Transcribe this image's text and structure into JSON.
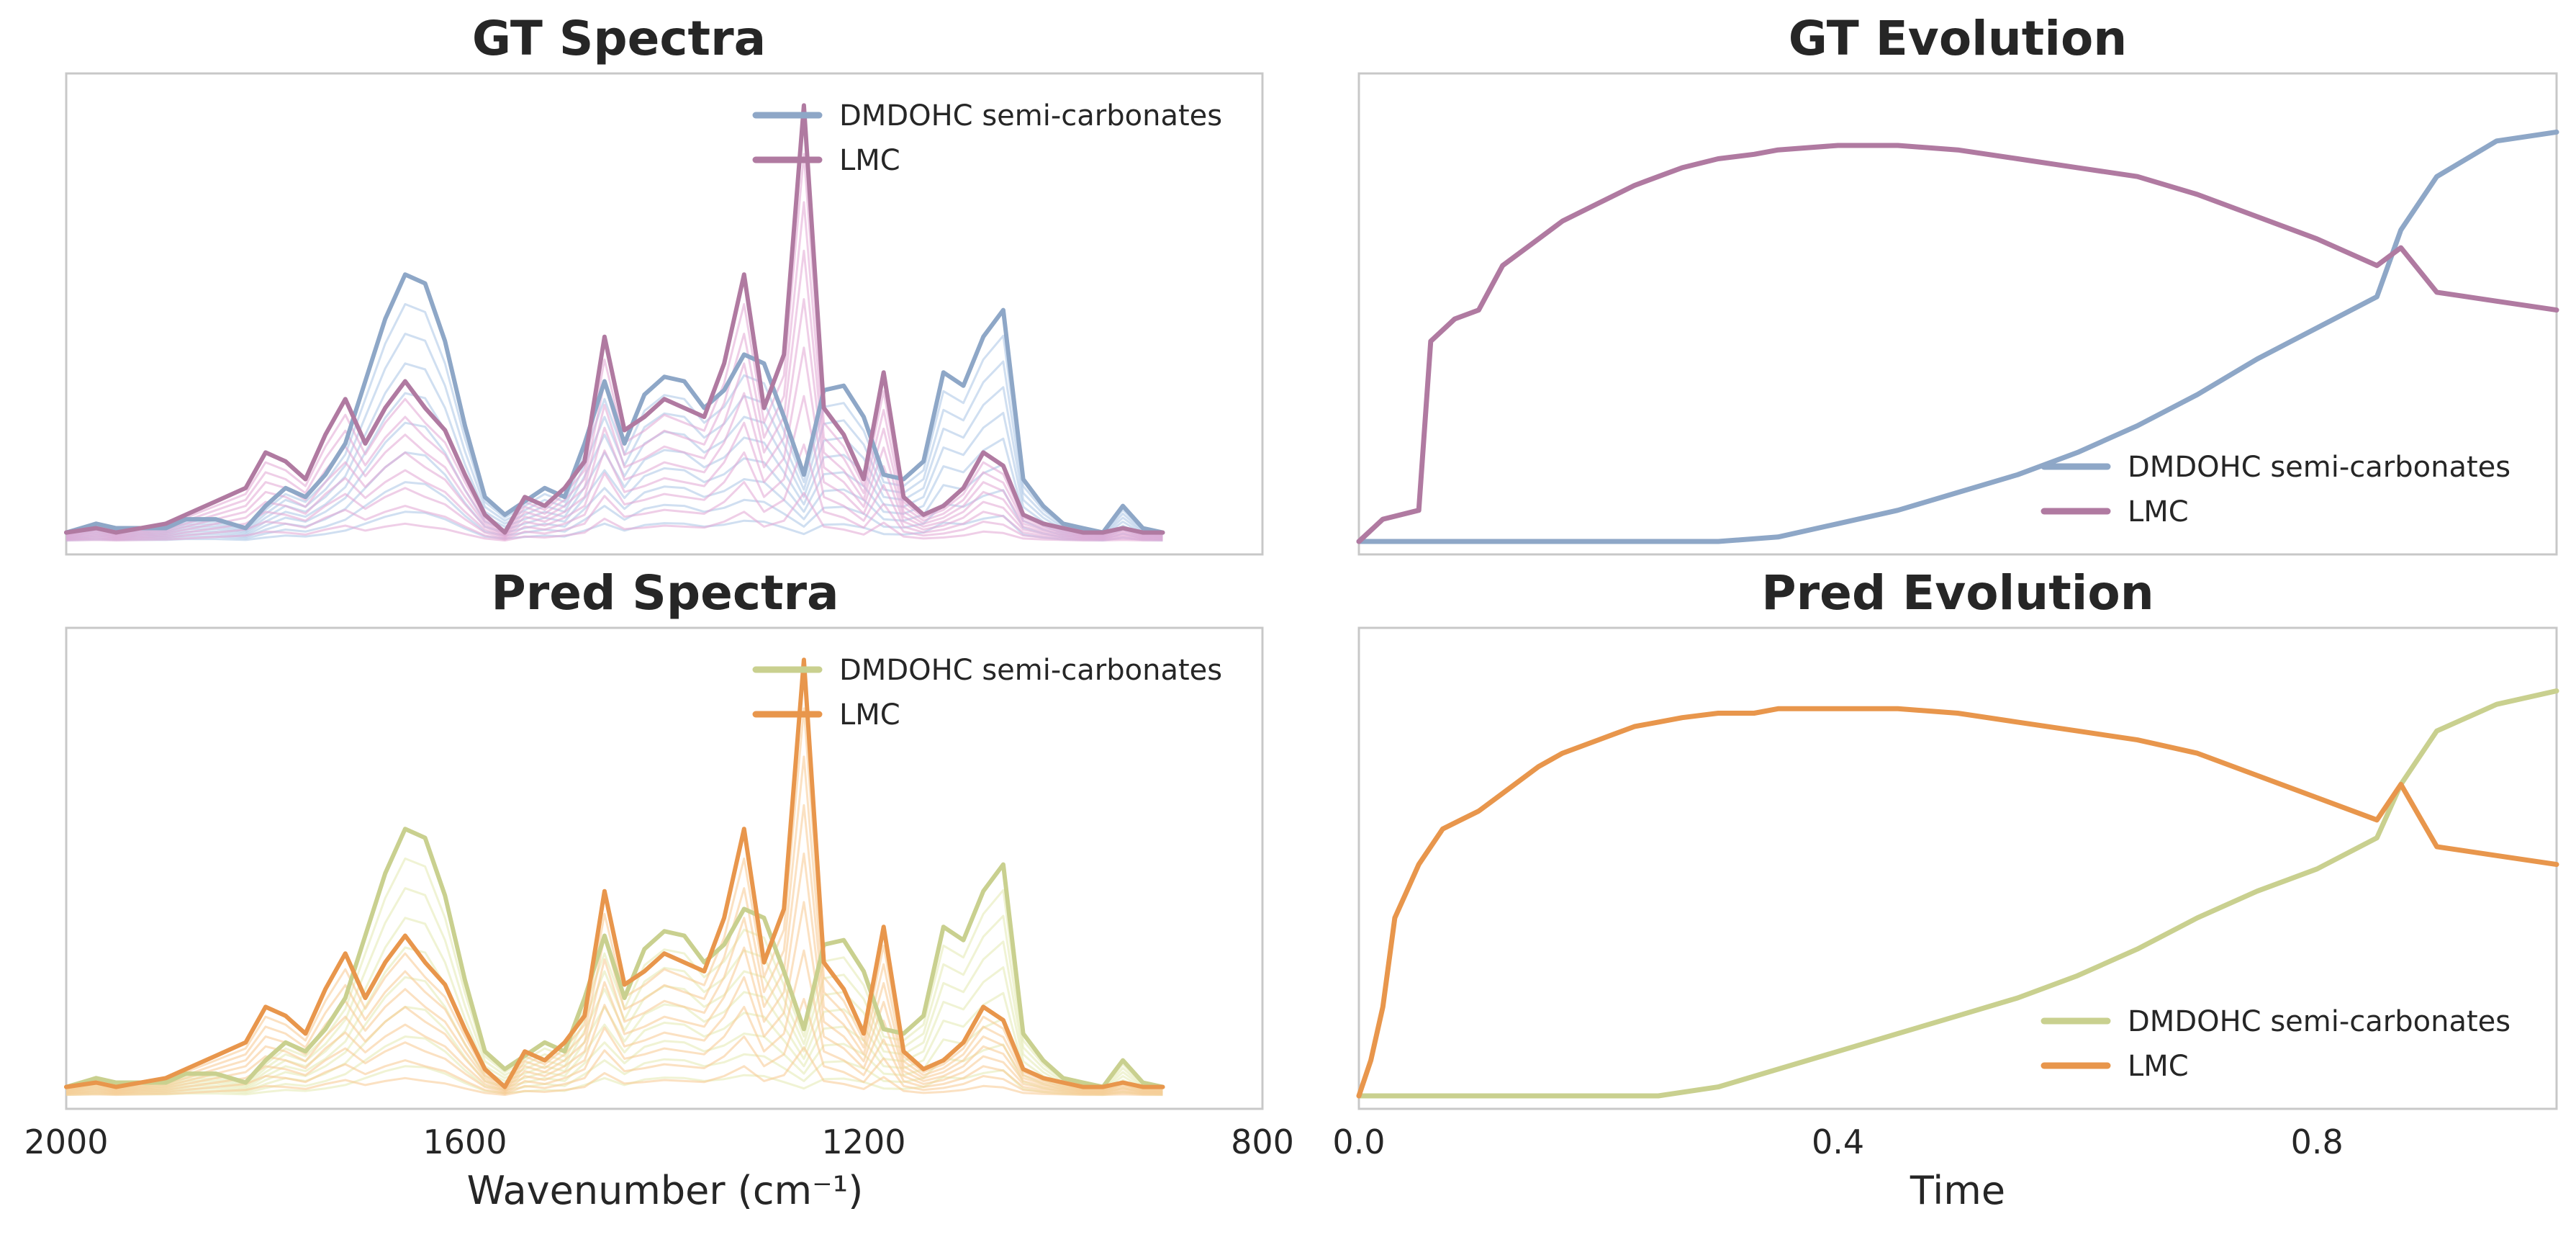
{
  "chart_data": [
    {
      "id": "gt_spectra",
      "type": "line",
      "title": "GT Spectra",
      "xlabel": "Wavenumber (cm⁻¹)",
      "ylabel": "",
      "xlim": [
        2000,
        800
      ],
      "ylim": [
        0,
        1
      ],
      "legend": {
        "placement": "top-right",
        "entries": [
          "DMDOHC semi-carbonates",
          "LMC"
        ]
      },
      "palette": {
        "DMDOHC semi-carbonates": "#8ea7c7",
        "LMC": "#b07aa1",
        "faded_a": "#aac4e6",
        "faded_b": "#e2a6d3"
      },
      "series": [
        {
          "name": "DMDOHC semi-carbonates",
          "x": [
            2000,
            1970,
            1950,
            1900,
            1880,
            1850,
            1820,
            1800,
            1780,
            1760,
            1740,
            1720,
            1700,
            1680,
            1660,
            1640,
            1620,
            1600,
            1580,
            1560,
            1540,
            1520,
            1500,
            1480,
            1460,
            1440,
            1420,
            1400,
            1380,
            1360,
            1340,
            1320,
            1300,
            1280,
            1260,
            1240,
            1220,
            1200,
            1180,
            1160,
            1140,
            1120,
            1100,
            1080,
            1060,
            1040,
            1020,
            1000,
            980,
            960,
            940,
            920,
            900
          ],
          "y": [
            0.02,
            0.04,
            0.03,
            0.03,
            0.05,
            0.05,
            0.03,
            0.08,
            0.12,
            0.1,
            0.15,
            0.22,
            0.36,
            0.5,
            0.6,
            0.58,
            0.45,
            0.26,
            0.1,
            0.06,
            0.09,
            0.12,
            0.1,
            0.22,
            0.36,
            0.22,
            0.33,
            0.37,
            0.36,
            0.3,
            0.34,
            0.42,
            0.4,
            0.28,
            0.15,
            0.34,
            0.35,
            0.28,
            0.15,
            0.14,
            0.18,
            0.38,
            0.35,
            0.46,
            0.52,
            0.14,
            0.08,
            0.04,
            0.03,
            0.02,
            0.08,
            0.03,
            0.02
          ]
        },
        {
          "name": "LMC",
          "x": [
            2000,
            1970,
            1950,
            1900,
            1880,
            1850,
            1820,
            1800,
            1780,
            1760,
            1740,
            1720,
            1700,
            1680,
            1660,
            1640,
            1620,
            1600,
            1580,
            1560,
            1540,
            1520,
            1500,
            1480,
            1460,
            1440,
            1420,
            1400,
            1380,
            1360,
            1340,
            1320,
            1300,
            1280,
            1260,
            1240,
            1220,
            1200,
            1180,
            1160,
            1140,
            1120,
            1100,
            1080,
            1060,
            1040,
            1020,
            1000,
            980,
            960,
            940,
            920,
            900
          ],
          "y": [
            0.02,
            0.03,
            0.02,
            0.04,
            0.06,
            0.09,
            0.12,
            0.2,
            0.18,
            0.14,
            0.24,
            0.32,
            0.22,
            0.3,
            0.36,
            0.3,
            0.25,
            0.15,
            0.06,
            0.02,
            0.1,
            0.08,
            0.12,
            0.18,
            0.46,
            0.25,
            0.28,
            0.32,
            0.3,
            0.28,
            0.4,
            0.6,
            0.3,
            0.42,
            0.98,
            0.3,
            0.24,
            0.14,
            0.38,
            0.1,
            0.06,
            0.08,
            0.12,
            0.2,
            0.17,
            0.06,
            0.04,
            0.03,
            0.02,
            0.02,
            0.03,
            0.02,
            0.02
          ]
        }
      ]
    },
    {
      "id": "gt_evolution",
      "type": "line",
      "title": "GT Evolution",
      "xlabel": "",
      "ylabel": "",
      "xlim": [
        0,
        1
      ],
      "ylim": [
        0,
        1
      ],
      "legend": {
        "placement": "bottom-right",
        "entries": [
          "DMDOHC semi-carbonates",
          "LMC"
        ]
      },
      "palette": {
        "DMDOHC semi-carbonates": "#8ea7c7",
        "LMC": "#b07aa1"
      },
      "series": [
        {
          "name": "DMDOHC semi-carbonates",
          "x": [
            0,
            0.1,
            0.2,
            0.3,
            0.35,
            0.4,
            0.45,
            0.5,
            0.55,
            0.6,
            0.65,
            0.7,
            0.75,
            0.8,
            0.85,
            0.87,
            0.9,
            0.95,
            1.0
          ],
          "y": [
            0,
            0,
            0,
            0,
            0.01,
            0.04,
            0.07,
            0.11,
            0.15,
            0.2,
            0.26,
            0.33,
            0.41,
            0.48,
            0.55,
            0.7,
            0.82,
            0.9,
            0.92
          ]
        },
        {
          "name": "LMC",
          "x": [
            0,
            0.02,
            0.05,
            0.06,
            0.08,
            0.1,
            0.12,
            0.15,
            0.17,
            0.2,
            0.23,
            0.25,
            0.27,
            0.3,
            0.33,
            0.35,
            0.4,
            0.45,
            0.5,
            0.55,
            0.6,
            0.65,
            0.7,
            0.75,
            0.8,
            0.85,
            0.87,
            0.9,
            0.95,
            1.0
          ],
          "y": [
            0,
            0.05,
            0.07,
            0.45,
            0.5,
            0.52,
            0.62,
            0.68,
            0.72,
            0.76,
            0.8,
            0.82,
            0.84,
            0.86,
            0.87,
            0.88,
            0.89,
            0.89,
            0.88,
            0.86,
            0.84,
            0.82,
            0.78,
            0.73,
            0.68,
            0.62,
            0.66,
            0.56,
            0.54,
            0.52
          ]
        }
      ]
    },
    {
      "id": "pred_spectra",
      "type": "line",
      "title": "Pred Spectra",
      "xlabel": "Wavenumber (cm⁻¹)",
      "ylabel": "",
      "xlim": [
        2000,
        800
      ],
      "ylim": [
        0,
        1
      ],
      "xticks": [
        "2000",
        "1600",
        "1200",
        "800"
      ],
      "legend": {
        "placement": "top-right",
        "entries": [
          "DMDOHC semi-carbonates",
          "LMC"
        ]
      },
      "palette": {
        "DMDOHC semi-carbonates": "#c9d08f",
        "LMC": "#e8964c",
        "faded_a": "#e3e9b0",
        "faded_b": "#f7c98f"
      },
      "series": [
        {
          "name": "DMDOHC semi-carbonates",
          "x": [
            2000,
            1970,
            1950,
            1900,
            1880,
            1850,
            1820,
            1800,
            1780,
            1760,
            1740,
            1720,
            1700,
            1680,
            1660,
            1640,
            1620,
            1600,
            1580,
            1560,
            1540,
            1520,
            1500,
            1480,
            1460,
            1440,
            1420,
            1400,
            1380,
            1360,
            1340,
            1320,
            1300,
            1280,
            1260,
            1240,
            1220,
            1200,
            1180,
            1160,
            1140,
            1120,
            1100,
            1080,
            1060,
            1040,
            1020,
            1000,
            980,
            960,
            940,
            920,
            900
          ],
          "y": [
            0.02,
            0.04,
            0.03,
            0.03,
            0.05,
            0.05,
            0.03,
            0.08,
            0.12,
            0.1,
            0.15,
            0.22,
            0.36,
            0.5,
            0.6,
            0.58,
            0.45,
            0.26,
            0.1,
            0.06,
            0.09,
            0.12,
            0.1,
            0.22,
            0.36,
            0.22,
            0.33,
            0.37,
            0.36,
            0.3,
            0.34,
            0.42,
            0.4,
            0.28,
            0.15,
            0.34,
            0.35,
            0.28,
            0.15,
            0.14,
            0.18,
            0.38,
            0.35,
            0.46,
            0.52,
            0.14,
            0.08,
            0.04,
            0.03,
            0.02,
            0.08,
            0.03,
            0.02
          ]
        },
        {
          "name": "LMC",
          "x": [
            2000,
            1970,
            1950,
            1900,
            1880,
            1850,
            1820,
            1800,
            1780,
            1760,
            1740,
            1720,
            1700,
            1680,
            1660,
            1640,
            1620,
            1600,
            1580,
            1560,
            1540,
            1520,
            1500,
            1480,
            1460,
            1440,
            1420,
            1400,
            1380,
            1360,
            1340,
            1320,
            1300,
            1280,
            1260,
            1240,
            1220,
            1200,
            1180,
            1160,
            1140,
            1120,
            1100,
            1080,
            1060,
            1040,
            1020,
            1000,
            980,
            960,
            940,
            920,
            900
          ],
          "y": [
            0.02,
            0.03,
            0.02,
            0.04,
            0.06,
            0.09,
            0.12,
            0.2,
            0.18,
            0.14,
            0.24,
            0.32,
            0.22,
            0.3,
            0.36,
            0.3,
            0.25,
            0.15,
            0.06,
            0.02,
            0.1,
            0.08,
            0.12,
            0.18,
            0.46,
            0.25,
            0.28,
            0.32,
            0.3,
            0.28,
            0.4,
            0.6,
            0.3,
            0.42,
            0.98,
            0.3,
            0.24,
            0.14,
            0.38,
            0.1,
            0.06,
            0.08,
            0.12,
            0.2,
            0.17,
            0.06,
            0.04,
            0.03,
            0.02,
            0.02,
            0.03,
            0.02,
            0.02
          ]
        }
      ]
    },
    {
      "id": "pred_evolution",
      "type": "line",
      "title": "Pred Evolution",
      "xlabel": "Time",
      "ylabel": "",
      "xlim": [
        0,
        1
      ],
      "ylim": [
        0,
        1
      ],
      "xticks": [
        "0.0",
        "0.4",
        "0.8"
      ],
      "legend": {
        "placement": "bottom-right",
        "entries": [
          "DMDOHC semi-carbonates",
          "LMC"
        ]
      },
      "palette": {
        "DMDOHC semi-carbonates": "#c9d08f",
        "LMC": "#e8964c"
      },
      "series": [
        {
          "name": "DMDOHC semi-carbonates",
          "x": [
            0,
            0.1,
            0.2,
            0.25,
            0.3,
            0.35,
            0.4,
            0.45,
            0.5,
            0.55,
            0.6,
            0.65,
            0.7,
            0.75,
            0.8,
            0.85,
            0.87,
            0.9,
            0.95,
            1.0
          ],
          "y": [
            0,
            0,
            0,
            0,
            0.02,
            0.06,
            0.1,
            0.14,
            0.18,
            0.22,
            0.27,
            0.33,
            0.4,
            0.46,
            0.51,
            0.58,
            0.7,
            0.82,
            0.88,
            0.91
          ]
        },
        {
          "name": "LMC",
          "x": [
            0,
            0.01,
            0.02,
            0.03,
            0.04,
            0.05,
            0.07,
            0.1,
            0.12,
            0.15,
            0.17,
            0.2,
            0.23,
            0.25,
            0.27,
            0.3,
            0.33,
            0.35,
            0.4,
            0.45,
            0.5,
            0.55,
            0.6,
            0.65,
            0.7,
            0.75,
            0.8,
            0.85,
            0.87,
            0.9,
            0.95,
            1.0
          ],
          "y": [
            0,
            0.08,
            0.2,
            0.4,
            0.46,
            0.52,
            0.6,
            0.64,
            0.68,
            0.74,
            0.77,
            0.8,
            0.83,
            0.84,
            0.85,
            0.86,
            0.86,
            0.87,
            0.87,
            0.87,
            0.86,
            0.84,
            0.82,
            0.8,
            0.77,
            0.72,
            0.67,
            0.62,
            0.7,
            0.56,
            0.54,
            0.52
          ]
        }
      ]
    }
  ]
}
